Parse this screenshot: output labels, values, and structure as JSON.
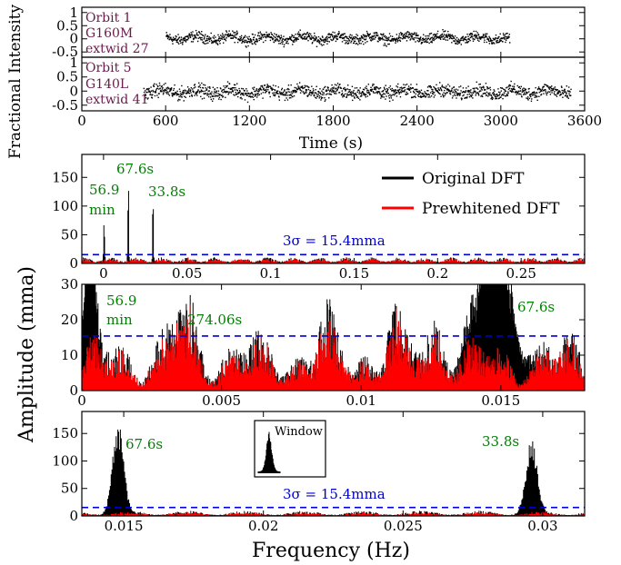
{
  "colors": {
    "original": "#000000",
    "prewhitened": "#ff0000",
    "threshold": "#0000cc",
    "period_label": "#008000",
    "orbit_label": "#6a1a4c"
  },
  "figure_labels": {
    "ylabel_top": "Fractional Intensity",
    "xlabel_top": "Time (s)",
    "ylabel_bottom": "Amplitude (mma)",
    "xlabel_bottom": "Frequency (Hz)"
  },
  "chart_data": [
    {
      "id": "orbit1",
      "type": "scatter",
      "xlabel": "",
      "ylabel": "",
      "xlim": [
        0,
        3600
      ],
      "ylim": [
        -0.7,
        1.2
      ],
      "yticks": [
        "1",
        "0.5",
        "0",
        "-0.5"
      ],
      "xticks": [],
      "annotations": [
        "Orbit 1",
        "G160M",
        "extwid 27"
      ],
      "series": [
        {
          "x_range": [
            600,
            3060
          ],
          "y_center": 0.05,
          "y_spread": 0.25
        }
      ]
    },
    {
      "id": "orbit5",
      "type": "scatter",
      "xlabel": "Time (s)",
      "ylabel": "",
      "xlim": [
        0,
        3600
      ],
      "ylim": [
        -0.7,
        1.2
      ],
      "yticks": [
        "1",
        "0.5",
        "0",
        "-0.5"
      ],
      "xticks": [
        "0",
        "600",
        "1200",
        "1800",
        "2400",
        "3000",
        "3600"
      ],
      "annotations": [
        "Orbit 5",
        "G140L",
        "extwid 41"
      ],
      "series": [
        {
          "x_range": [
            440,
            3500
          ],
          "y_center": 0.0,
          "y_spread": 0.3
        }
      ]
    },
    {
      "id": "dft_full",
      "type": "line",
      "xlim": [
        -0.013,
        0.288
      ],
      "ylim": [
        0,
        190
      ],
      "xticks": [
        "0",
        "0.05",
        "0.1",
        "0.15",
        "0.2",
        "0.25"
      ],
      "yticks": [
        "0",
        "50",
        "100",
        "150"
      ],
      "legend": [
        "Original DFT",
        "Prewhitened DFT"
      ],
      "legend_position": "top-right",
      "threshold": {
        "value": 15.4,
        "label": "3σ = 15.4mma"
      },
      "peaks": [
        {
          "x": 0.000293,
          "y": 78,
          "label": "56.9 min"
        },
        {
          "x": 0.0148,
          "y": 180,
          "label": "67.6s"
        },
        {
          "x": 0.0296,
          "y": 147,
          "label": "33.8s"
        }
      ],
      "series": [
        {
          "name": "Original DFT"
        },
        {
          "name": "Prewhitened DFT"
        }
      ]
    },
    {
      "id": "dft_zoom_low",
      "type": "line",
      "xlim": [
        0,
        0.018
      ],
      "ylim": [
        0,
        30
      ],
      "xticks": [
        "0",
        "0.005",
        "0.01",
        "0.015"
      ],
      "yticks": [
        "0",
        "10",
        "20",
        "30"
      ],
      "threshold": {
        "value": 15.4
      },
      "peaks": [
        {
          "x": 0.000293,
          "label": "56.9 min"
        },
        {
          "x": 0.003649,
          "y": 25,
          "label": "274.06s"
        },
        {
          "x": 0.0148,
          "label": "67.6s"
        }
      ]
    },
    {
      "id": "dft_zoom_high",
      "type": "line",
      "xlim": [
        0.0135,
        0.0315
      ],
      "ylim": [
        0,
        190
      ],
      "xticks": [
        "0.015",
        "0.02",
        "0.025",
        "0.03"
      ],
      "yticks": [
        "0",
        "50",
        "100",
        "150"
      ],
      "threshold": {
        "value": 15.4,
        "label": "3σ = 15.4mma"
      },
      "peaks": [
        {
          "x": 0.0148,
          "y": 180,
          "label": "67.6s"
        },
        {
          "x": 0.0296,
          "y": 147,
          "label": "33.8s"
        }
      ],
      "inset_label": "Window"
    }
  ]
}
